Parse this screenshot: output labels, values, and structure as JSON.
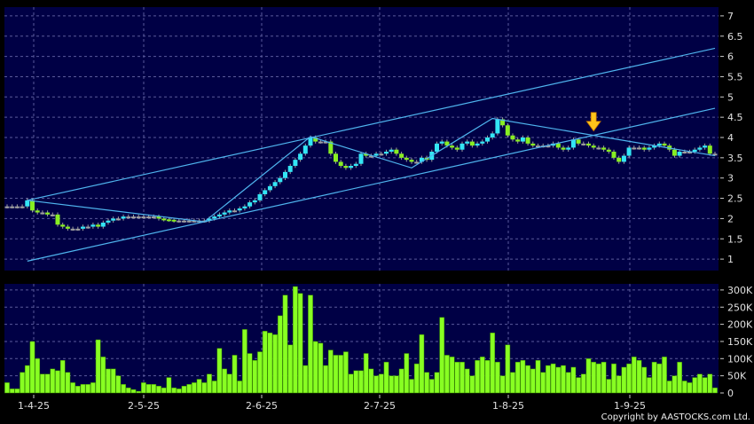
{
  "chart_data": [
    {
      "type": "candlestick",
      "title": "",
      "y_axis_position": "right",
      "ylim": [
        0.75,
        7.2
      ],
      "yticks": [
        "1",
        "1.5",
        "2",
        "2.5",
        "3",
        "3.5",
        "4",
        "4.5",
        "5",
        "5.5",
        "6",
        "6.5",
        "7"
      ],
      "grid": true,
      "colors": {
        "background": "#000045",
        "up": "#33e6f5",
        "down": "#88ee22",
        "flat": "#a0a0a0",
        "trendline": "#4fb4ee",
        "marker": "#ffc51a"
      },
      "closes": [
        2.3,
        2.3,
        2.3,
        2.3,
        2.45,
        2.2,
        2.15,
        2.15,
        2.1,
        2.1,
        1.85,
        1.8,
        1.75,
        1.75,
        1.75,
        1.8,
        1.8,
        1.85,
        1.8,
        1.9,
        1.95,
        2.0,
        2.0,
        2.05,
        2.05,
        2.05,
        2.05,
        2.05,
        2.05,
        2.05,
        2.0,
        1.98,
        1.97,
        1.95,
        1.95,
        1.95,
        1.95,
        1.95,
        1.95,
        1.95,
        2.0,
        2.05,
        2.1,
        2.15,
        2.2,
        2.2,
        2.25,
        2.3,
        2.4,
        2.45,
        2.6,
        2.7,
        2.8,
        2.9,
        3.0,
        3.15,
        3.3,
        3.45,
        3.6,
        3.8,
        4.0,
        3.9,
        3.9,
        3.9,
        3.6,
        3.4,
        3.3,
        3.25,
        3.3,
        3.35,
        3.6,
        3.55,
        3.55,
        3.6,
        3.6,
        3.65,
        3.7,
        3.6,
        3.5,
        3.45,
        3.4,
        3.4,
        3.5,
        3.45,
        3.65,
        3.85,
        3.9,
        3.8,
        3.75,
        3.7,
        3.85,
        3.9,
        3.8,
        3.85,
        3.9,
        4.0,
        4.1,
        4.45,
        4.3,
        4.05,
        3.95,
        3.9,
        4.0,
        3.85,
        3.8,
        3.8,
        3.8,
        3.8,
        3.85,
        3.75,
        3.7,
        3.75,
        3.95,
        3.85,
        3.85,
        3.8,
        3.75,
        3.75,
        3.7,
        3.65,
        3.5,
        3.4,
        3.55,
        3.75,
        3.75,
        3.75,
        3.7,
        3.75,
        3.8,
        3.85,
        3.8,
        3.7,
        3.55,
        3.65,
        3.65,
        3.65,
        3.7,
        3.75,
        3.8,
        3.6,
        3.6
      ],
      "trendlines": [
        {
          "name": "upper-channel",
          "from": {
            "bar": 4,
            "price": 2.45
          },
          "to": {
            "bar": 140,
            "price": 6.2
          }
        },
        {
          "name": "lower-channel",
          "from": {
            "bar": 4,
            "price": 0.95
          },
          "to": {
            "bar": 140,
            "price": 4.72
          }
        },
        {
          "name": "zigzag",
          "points": [
            {
              "bar": 4,
              "price": 2.45
            },
            {
              "bar": 39,
              "price": 1.92
            },
            {
              "bar": 60,
              "price": 4.02
            },
            {
              "bar": 80,
              "price": 3.25
            },
            {
              "bar": 96,
              "price": 4.47
            },
            {
              "bar": 140,
              "price": 3.55
            }
          ]
        }
      ],
      "marker": {
        "icon": "down-arrow-icon",
        "bar": 116,
        "price": 4.05
      }
    },
    {
      "type": "bar",
      "title": "",
      "y_axis_position": "right",
      "ylim": [
        0,
        310000
      ],
      "yticks": [
        "0",
        "50K",
        "100K",
        "150K",
        "200K",
        "250K",
        "300K"
      ],
      "grid": true,
      "colors": {
        "bar": "#88ff22"
      },
      "values": [
        30,
        12,
        12,
        60,
        80,
        150,
        100,
        55,
        55,
        70,
        65,
        95,
        60,
        30,
        20,
        25,
        25,
        30,
        155,
        105,
        70,
        70,
        50,
        25,
        15,
        10,
        5,
        30,
        25,
        25,
        20,
        15,
        45,
        15,
        12,
        20,
        25,
        30,
        40,
        30,
        55,
        35,
        130,
        70,
        55,
        110,
        35,
        185,
        115,
        95,
        120,
        180,
        175,
        170,
        225,
        285,
        140,
        310,
        290,
        80,
        285,
        150,
        145,
        80,
        125,
        110,
        110,
        120,
        55,
        65,
        65,
        115,
        70,
        50,
        55,
        90,
        50,
        50,
        70,
        115,
        40,
        85,
        170,
        60,
        40,
        60,
        220,
        110,
        105,
        90,
        90,
        70,
        50,
        95,
        105,
        95,
        175,
        90,
        50,
        140,
        60,
        90,
        95,
        80,
        70,
        95,
        60,
        80,
        85,
        75,
        80,
        60,
        75,
        45,
        55,
        100,
        90,
        85,
        90,
        40,
        85,
        50,
        75,
        85,
        105,
        95,
        75,
        45,
        90,
        85,
        105,
        35,
        50,
        90,
        35,
        30,
        45,
        55,
        45,
        55,
        15
      ],
      "value_unit": "K",
      "xticks": [
        "1-4-25",
        "2-5-25",
        "2-6-25",
        "2-7-25",
        "1-8-25",
        "1-9-25"
      ]
    }
  ],
  "footer": {
    "copyright": "Copyright by AASTOCKS.com Ltd."
  }
}
